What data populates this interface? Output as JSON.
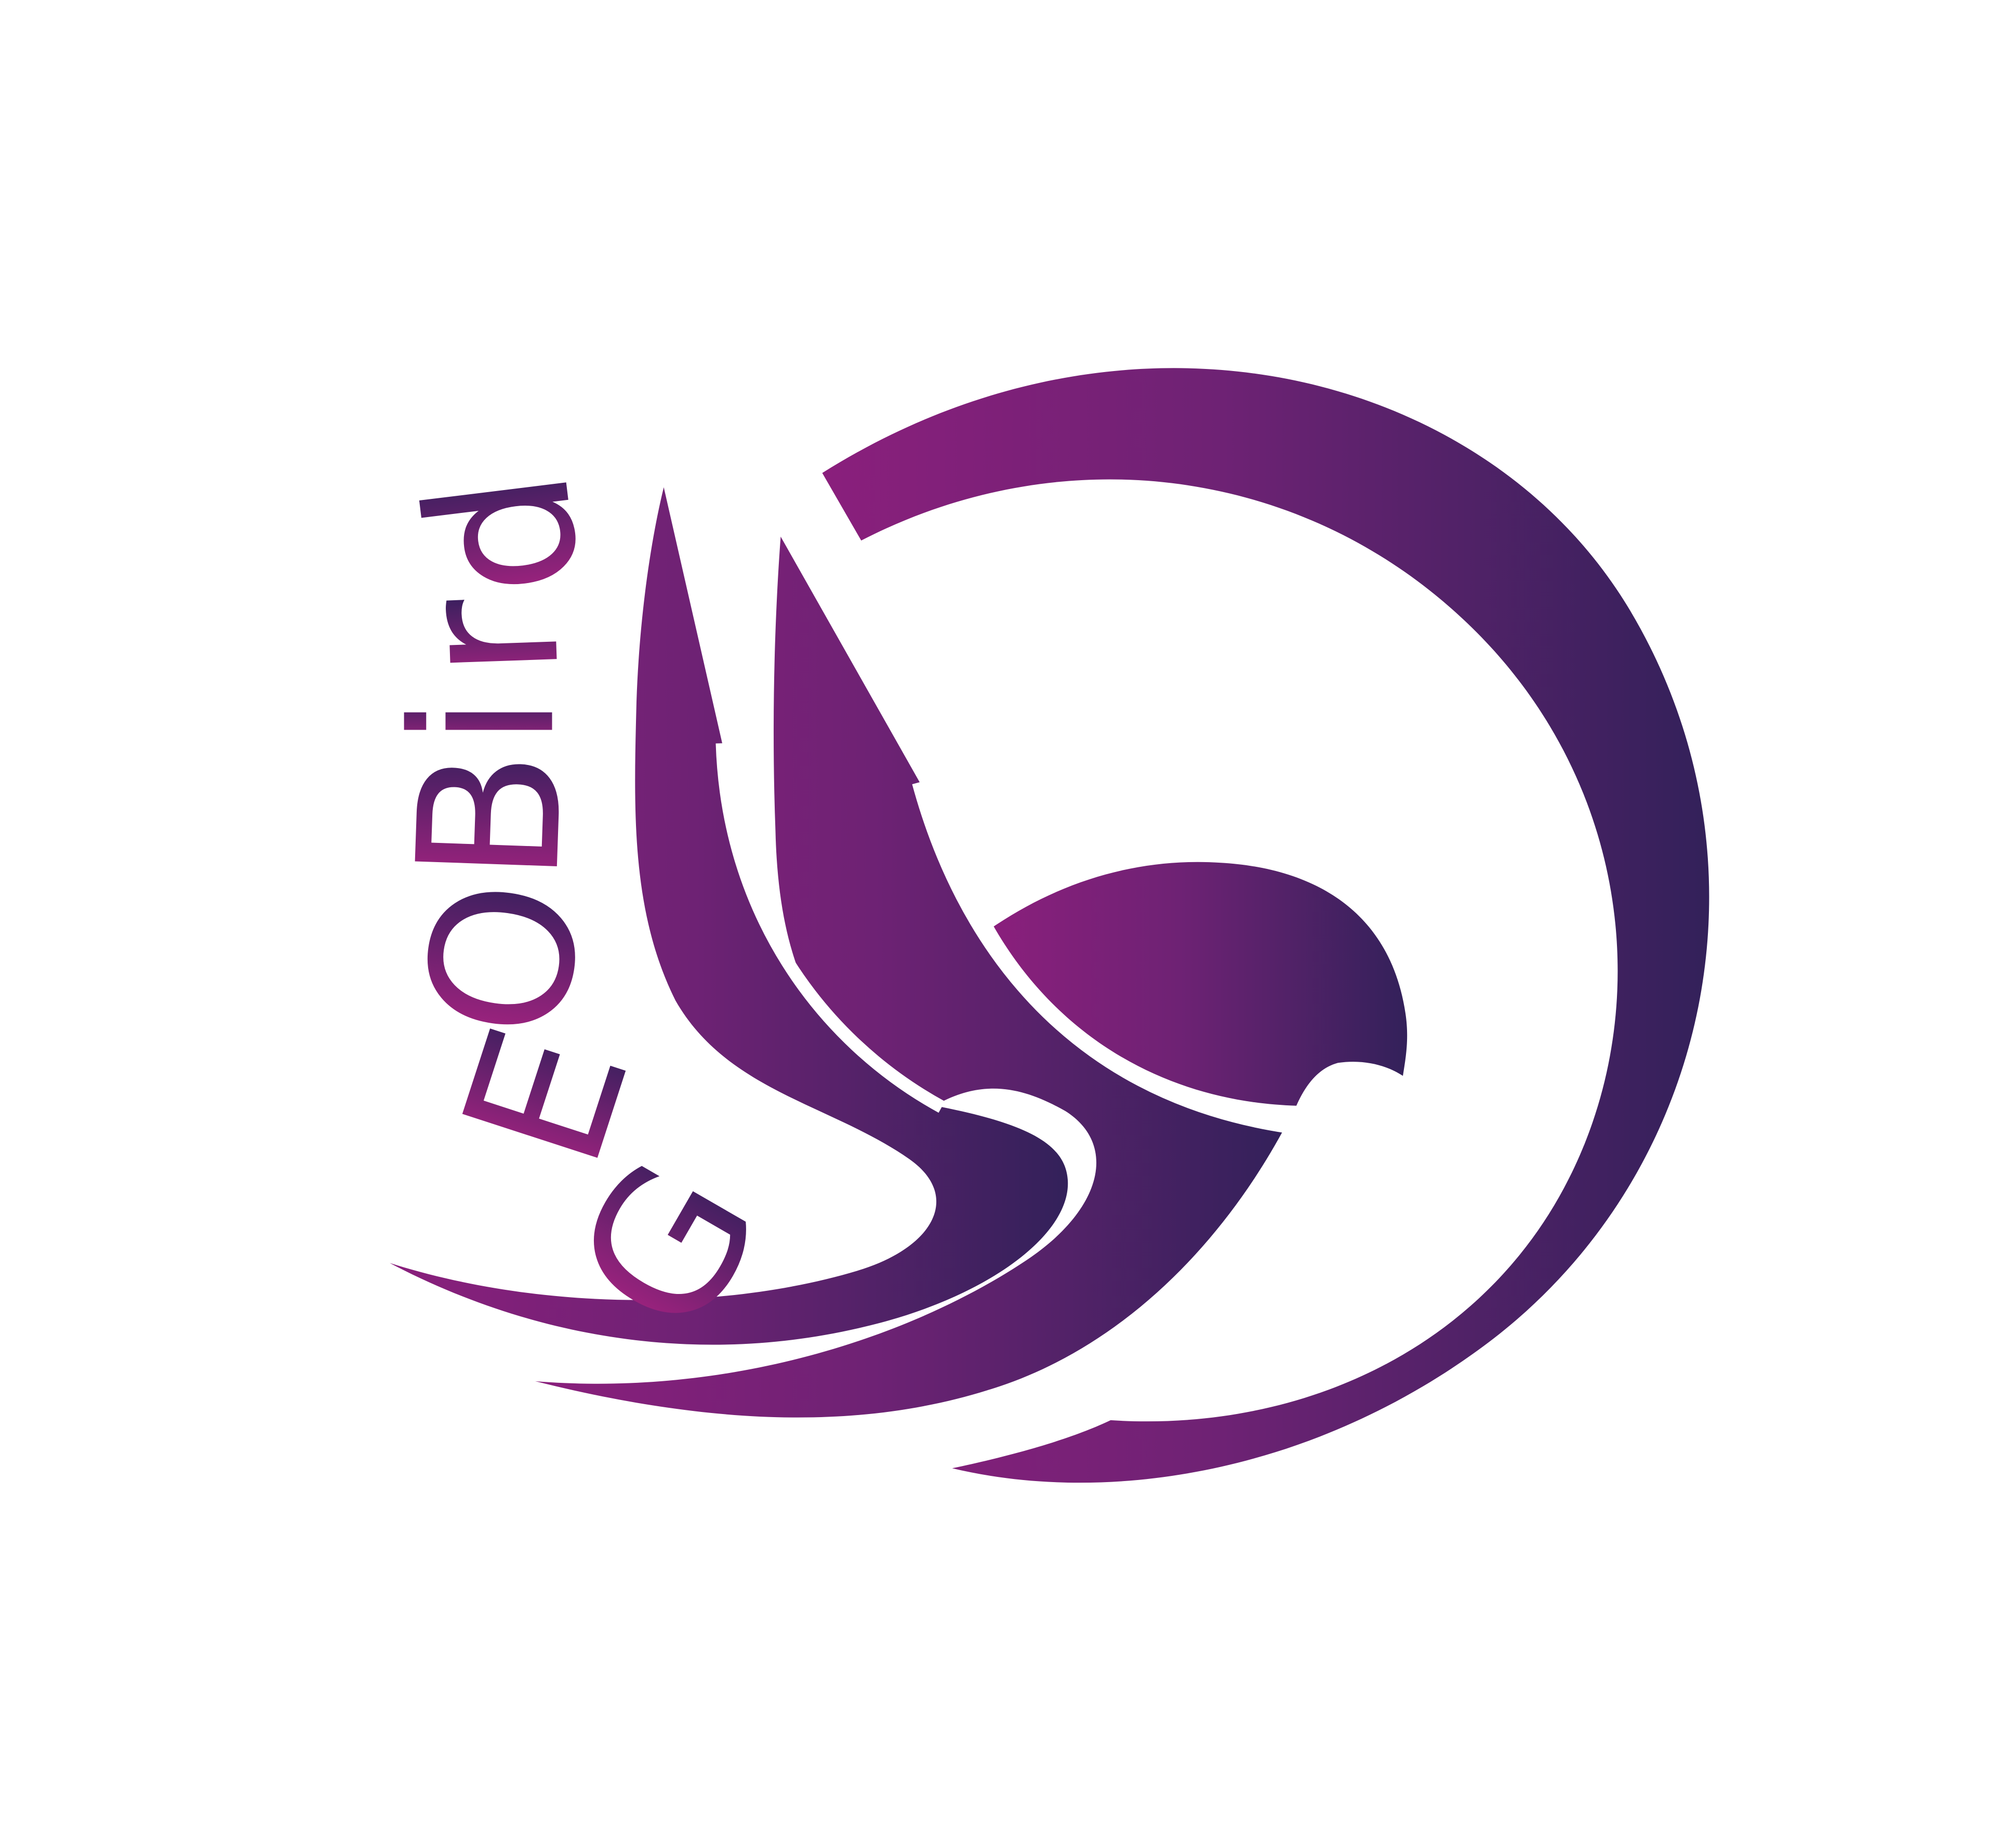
{
  "logo": {
    "wordmark": "GEOBird",
    "letters": [
      "G",
      "E",
      "O",
      "B",
      "i",
      "r",
      "d"
    ],
    "colors": {
      "background": "#ffffff",
      "gradient_start": "#8a1f7c",
      "gradient_mid": "#6e2274",
      "gradient_end": "#33215a"
    }
  }
}
